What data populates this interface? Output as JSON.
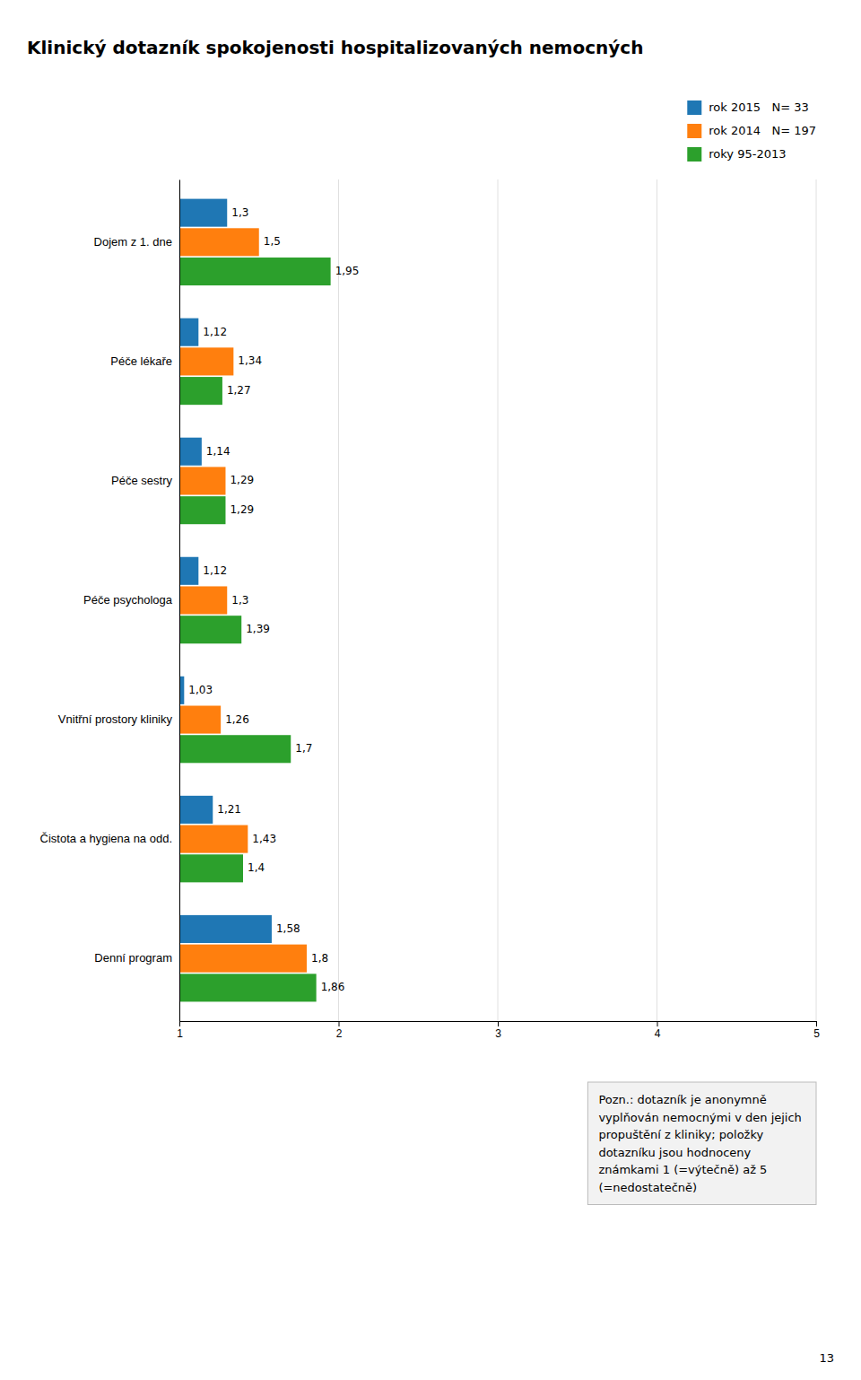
{
  "chart_data": {
    "type": "bar",
    "orientation": "horizontal",
    "title": "Klinický dotazník spokojenosti hospitalizovaných nemocných",
    "categories": [
      "Dojem z 1. dne",
      "Péče lékaře",
      "Péče sestry",
      "Péče psychologa",
      "Vnitřní prostory kliniky",
      "Čistota a hygiena na odd.",
      "Denní program"
    ],
    "series": [
      {
        "name": "rok 2015   N= 33",
        "values": [
          1.3,
          1.12,
          1.14,
          1.12,
          1.03,
          1.21,
          1.58
        ],
        "value_labels": [
          "1,3",
          "1,12",
          "1,14",
          "1,12",
          "1,03",
          "1,21",
          "1,58"
        ]
      },
      {
        "name": "rok 2014   N= 197",
        "values": [
          1.5,
          1.34,
          1.29,
          1.3,
          1.26,
          1.43,
          1.8
        ],
        "value_labels": [
          "1,5",
          "1,34",
          "1,29",
          "1,3",
          "1,26",
          "1,43",
          "1,8"
        ]
      },
      {
        "name": "roky 95-2013",
        "values": [
          1.95,
          1.27,
          1.29,
          1.39,
          1.7,
          1.4,
          1.86
        ],
        "value_labels": [
          "1,95",
          "1,27",
          "1,29",
          "1,39",
          "1,7",
          "1,4",
          "1,86"
        ]
      }
    ],
    "xlim": [
      1,
      5
    ],
    "xticks": [
      1,
      2,
      3,
      4,
      5
    ],
    "grid": true,
    "legend": "upper right",
    "data_labels": true,
    "annotations": [
      "Pozn.: dotazník je anonymně\nvyplňován nemocnými v den jejich\npropuštění z kliniky; položky\ndotazníku jsou hodnoceny\nznámkami 1 (=výtečně) až 5\n(=nedostatečně)",
      "13"
    ]
  }
}
